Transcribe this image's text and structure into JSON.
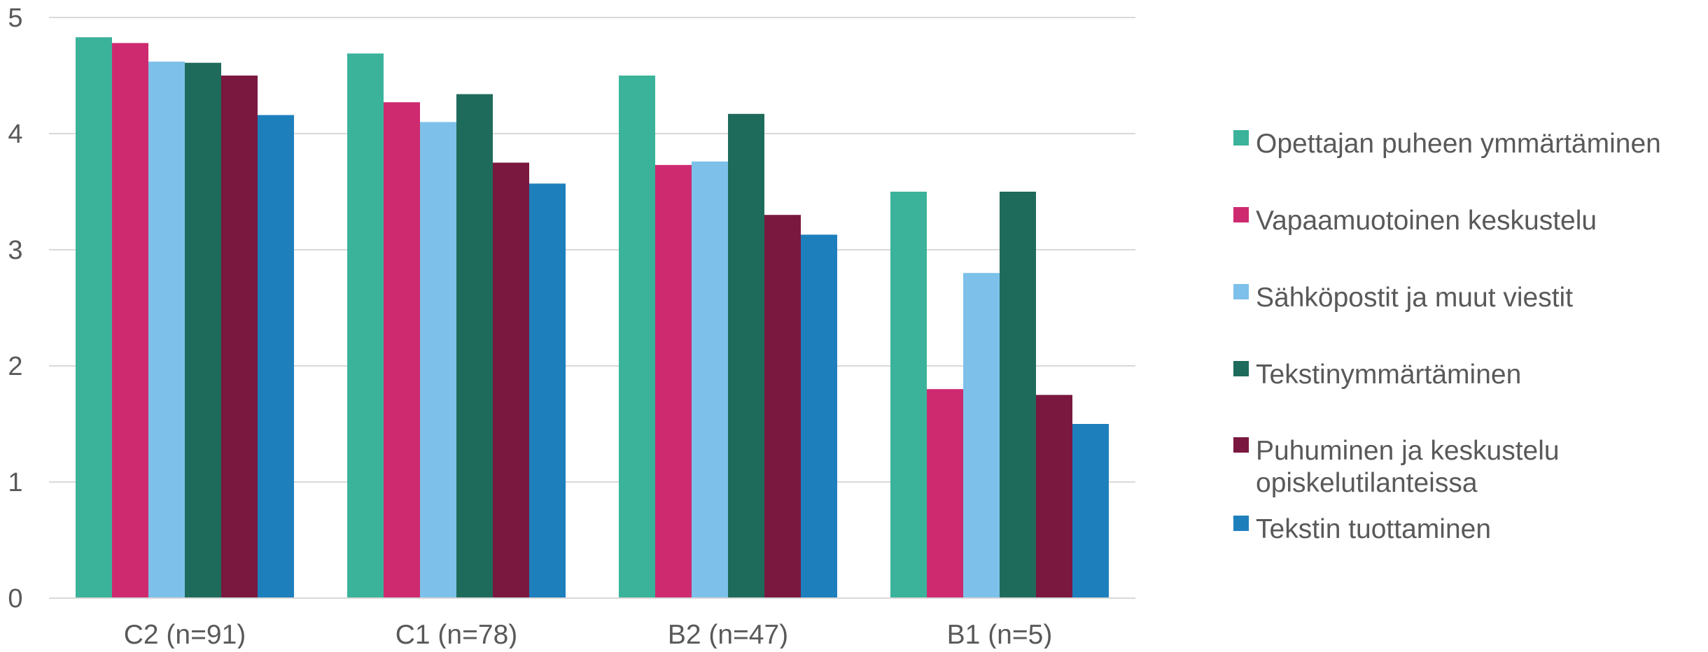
{
  "chart_data": {
    "type": "bar",
    "title": "",
    "xlabel": "",
    "ylabel": "",
    "ylim": [
      0,
      5
    ],
    "yticks": [
      0,
      1,
      2,
      3,
      4,
      5
    ],
    "grid": true,
    "legend_position": "right",
    "categories": [
      "C2 (n=91)",
      "C1 (n=78)",
      "B2 (n=47)",
      "B1 (n=5)"
    ],
    "series": [
      {
        "name": "Opettajan puheen ymmärtäminen",
        "name_lines": [
          "Opettajan puheen ymmärtäminen"
        ],
        "color": "#3BB39A",
        "values": [
          4.83,
          4.69,
          4.5,
          3.5
        ]
      },
      {
        "name": "Vapaamuotoinen keskustelu",
        "name_lines": [
          "Vapaamuotoinen keskustelu"
        ],
        "color": "#CE2A6F",
        "values": [
          4.78,
          4.27,
          3.73,
          1.8
        ]
      },
      {
        "name": "Sähköpostit ja muut viestit",
        "name_lines": [
          "Sähköpostit ja muut viestit"
        ],
        "color": "#7DC1EA",
        "values": [
          4.62,
          4.1,
          3.76,
          2.8
        ]
      },
      {
        "name": "Tekstinymmärtäminen",
        "name_lines": [
          "Tekstinymmärtäminen"
        ],
        "color": "#1F6B5B",
        "values": [
          4.61,
          4.34,
          4.17,
          3.5
        ]
      },
      {
        "name": "Puhuminen ja keskustelu opiskelutilanteissa",
        "name_lines": [
          "Puhuminen ja keskustelu",
          "opiskelutilanteissa"
        ],
        "color": "#7A1840",
        "values": [
          4.5,
          3.75,
          3.3,
          1.75
        ]
      },
      {
        "name": "Tekstin tuottaminen",
        "name_lines": [
          "Tekstin tuottaminen"
        ],
        "color": "#1E7FBD",
        "values": [
          4.16,
          3.57,
          3.13,
          1.5
        ]
      }
    ],
    "colors": {
      "grid": "#D9D9D9",
      "axis": "#D9D9D9",
      "text": "#595959"
    }
  }
}
